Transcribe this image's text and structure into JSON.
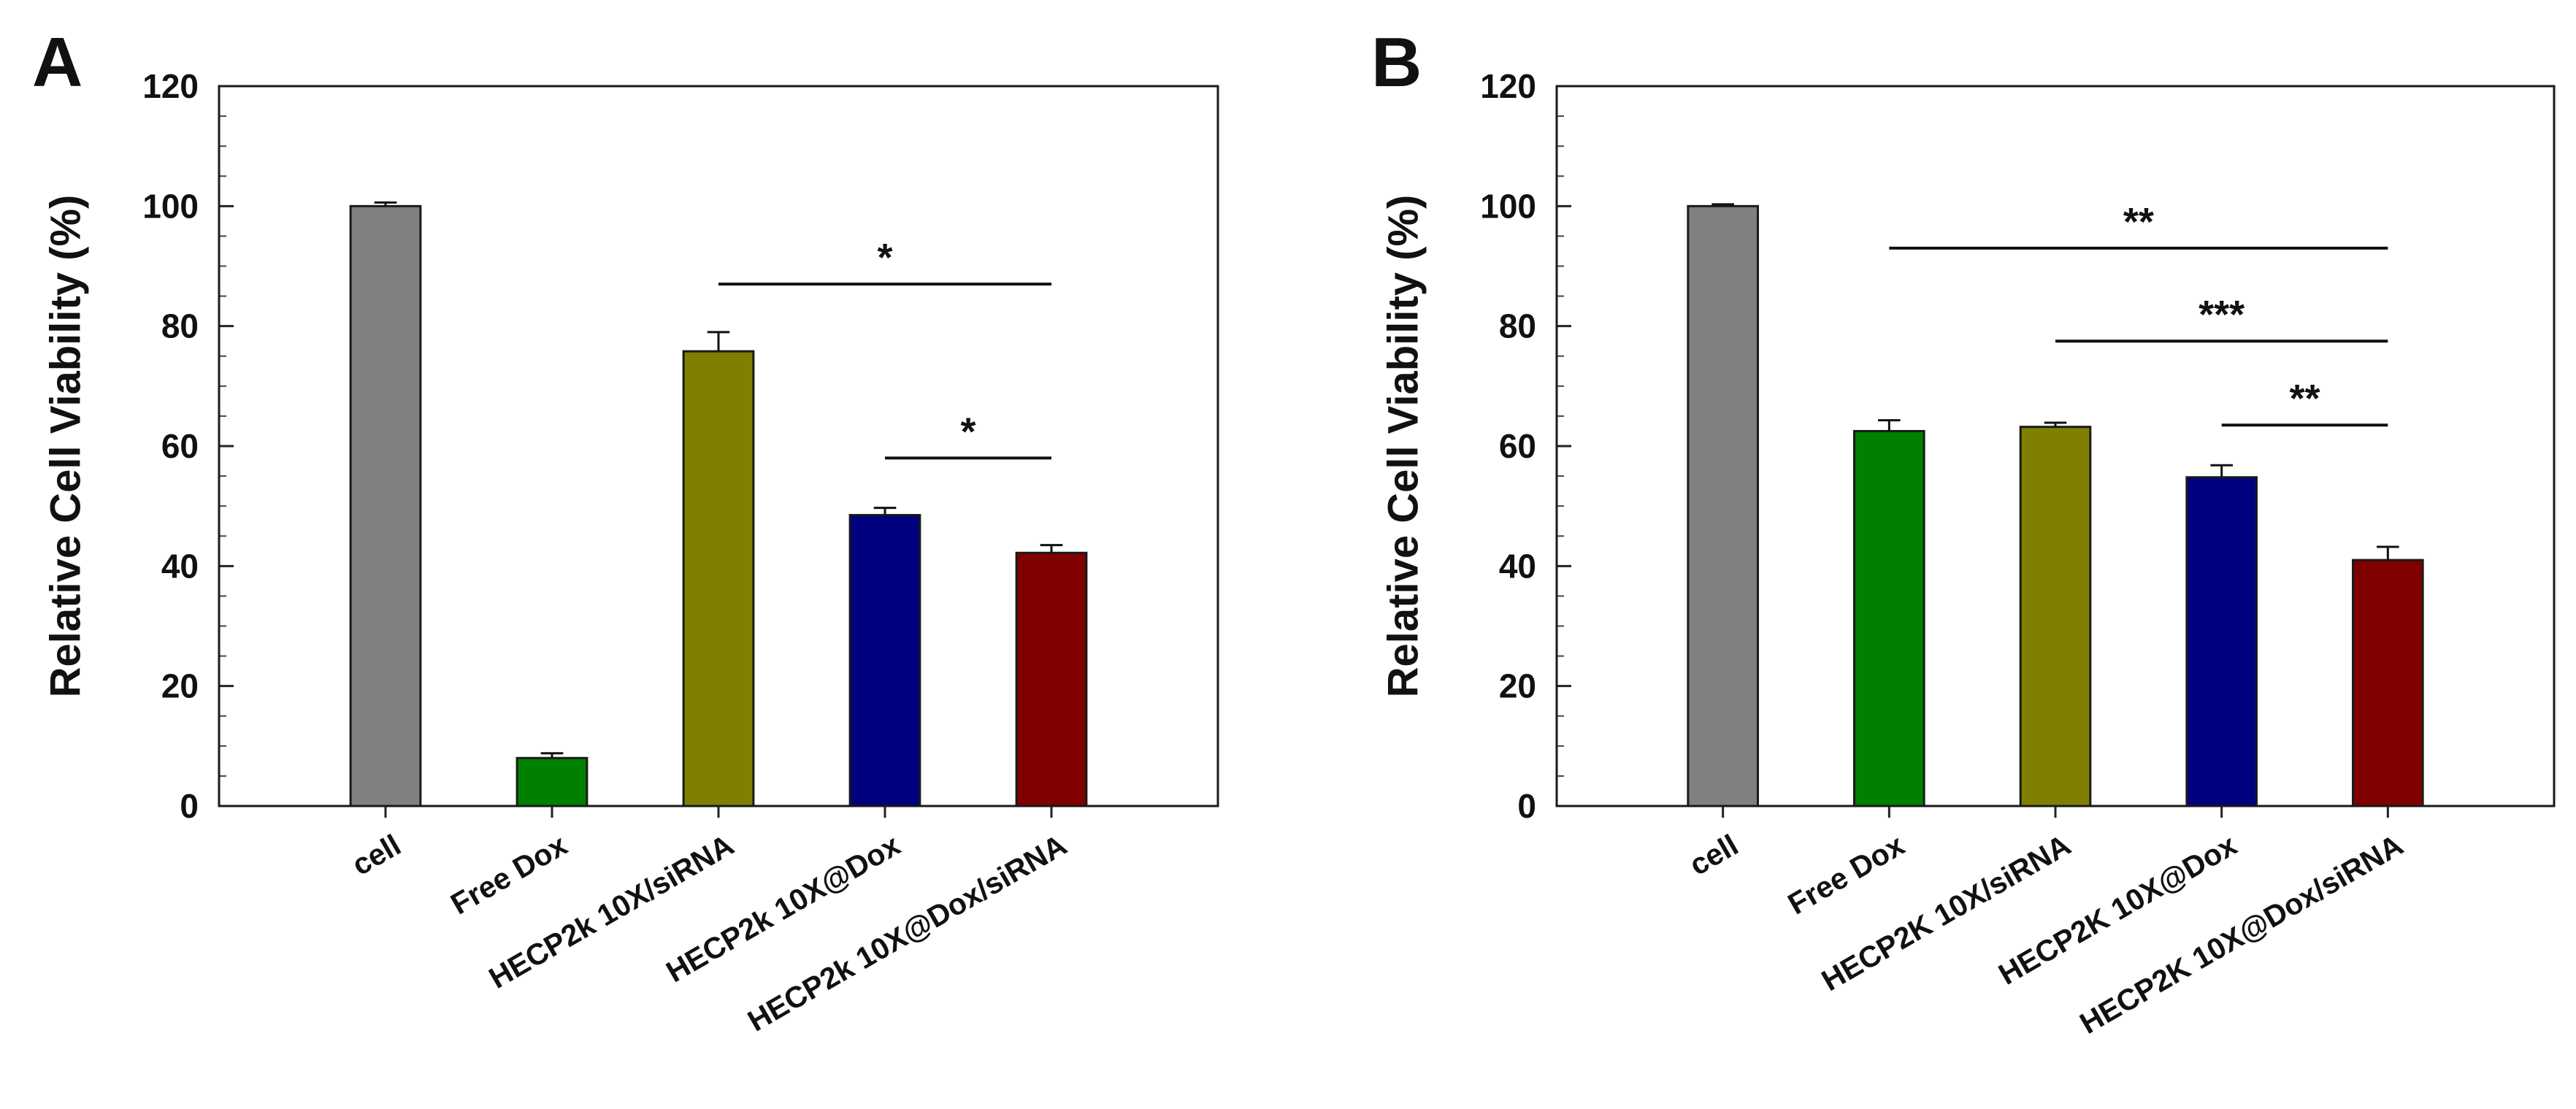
{
  "chart_data": [
    {
      "panel_label": "A",
      "type": "bar",
      "title": "",
      "xlabel": "",
      "ylabel": "Relative Cell Viability (%)",
      "ylim": [
        0,
        120
      ],
      "yticks": [
        "0",
        "20",
        "40",
        "60",
        "80",
        "100",
        "120"
      ],
      "grid": false,
      "categories": [
        "cell",
        "Free Dox",
        "HECP2k 10X/siRNA",
        "HECP2k 10X@Dox",
        "HECP2k 10X@Dox/siRNA"
      ],
      "values": [
        100,
        8,
        75.8,
        48.5,
        42.2
      ],
      "errors": [
        0.6,
        0.8,
        3.2,
        1.2,
        1.3
      ],
      "colors": [
        "#808080",
        "#008000",
        "#808000",
        "#000080",
        "#800000"
      ],
      "significance": [
        {
          "from": 2,
          "to": 4,
          "y": 87,
          "label": "*"
        },
        {
          "from": 3,
          "to": 4,
          "y": 58,
          "label": "*"
        }
      ]
    },
    {
      "panel_label": "B",
      "type": "bar",
      "title": "",
      "xlabel": "",
      "ylabel": "Relative Cell Viability (%)",
      "ylim": [
        0,
        120
      ],
      "yticks": [
        "0",
        "20",
        "40",
        "60",
        "80",
        "100",
        "120"
      ],
      "grid": false,
      "categories": [
        "cell",
        "Free Dox",
        "HECP2K 10X/siRNA",
        "HECP2K 10X@Dox",
        "HECP2K 10X@Dox/siRNA"
      ],
      "values": [
        100,
        62.5,
        63.2,
        54.8,
        41.0
      ],
      "errors": [
        0.3,
        1.8,
        0.7,
        2.0,
        2.2
      ],
      "colors": [
        "#808080",
        "#008000",
        "#808000",
        "#000080",
        "#800000"
      ],
      "significance": [
        {
          "from": 1,
          "to": 4,
          "y": 93,
          "label": "**"
        },
        {
          "from": 2,
          "to": 4,
          "y": 77.5,
          "label": "***"
        },
        {
          "from": 3,
          "to": 4,
          "y": 63.5,
          "label": "**"
        }
      ]
    }
  ]
}
